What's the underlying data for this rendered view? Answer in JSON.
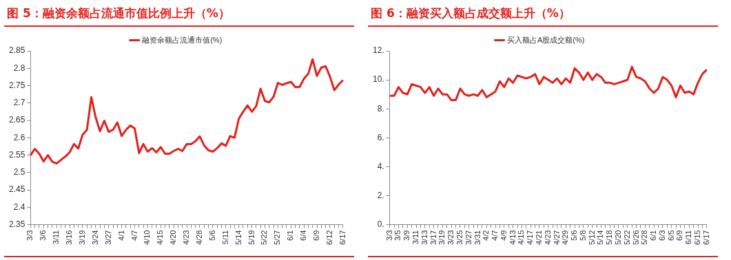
{
  "chart_data": [
    {
      "type": "line",
      "title": "图 5：融资余额占流通市值比例上升（%）",
      "legend": "top",
      "grid": false,
      "marker": "none",
      "line_style": "solid",
      "categories": [
        "3/3",
        null,
        null,
        "3/6",
        null,
        null,
        "3/11",
        null,
        null,
        "3/16",
        null,
        null,
        "3/19",
        null,
        null,
        "3/24",
        null,
        null,
        "3/27",
        null,
        null,
        "4/1",
        null,
        null,
        "4/7",
        null,
        null,
        "4/10",
        null,
        null,
        "4/15",
        null,
        null,
        "4/20",
        null,
        null,
        "4/23",
        null,
        null,
        "4/28",
        null,
        null,
        "5/6",
        null,
        null,
        "5/11",
        null,
        null,
        "5/14",
        null,
        null,
        "5/19",
        null,
        null,
        "5/22",
        null,
        null,
        "5/27",
        null,
        null,
        "6/1",
        null,
        null,
        "6/4",
        null,
        null,
        "6/9",
        null,
        null,
        "6/12",
        null,
        null,
        "6/17"
      ],
      "series": [
        {
          "name": "融资余额占流通市值(%)",
          "color": "#e3211c",
          "values": [
            2.55,
            2.568,
            2.554,
            2.532,
            2.55,
            2.531,
            2.526,
            2.536,
            2.546,
            2.558,
            2.582,
            2.569,
            2.609,
            2.623,
            2.717,
            2.659,
            2.619,
            2.649,
            2.617,
            2.623,
            2.644,
            2.605,
            2.623,
            2.635,
            2.627,
            2.556,
            2.582,
            2.56,
            2.57,
            2.558,
            2.573,
            2.554,
            2.554,
            2.562,
            2.568,
            2.562,
            2.582,
            2.582,
            2.59,
            2.604,
            2.578,
            2.564,
            2.56,
            2.57,
            2.584,
            2.577,
            2.605,
            2.6,
            2.655,
            2.675,
            2.693,
            2.675,
            2.691,
            2.741,
            2.706,
            2.702,
            2.718,
            2.758,
            2.752,
            2.757,
            2.761,
            2.746,
            2.746,
            2.77,
            2.784,
            2.826,
            2.778,
            2.802,
            2.806,
            2.776,
            2.737,
            2.753,
            2.766
          ]
        }
      ],
      "ylim": [
        2.35,
        2.85
      ],
      "yticks": [
        2.35,
        2.4,
        2.45,
        2.5,
        2.55,
        2.6,
        2.65,
        2.7,
        2.75,
        2.8,
        2.85
      ]
    },
    {
      "type": "line",
      "title": "图 6：融资买入额占成交额上升（%）",
      "legend": "top",
      "grid": false,
      "marker": "none",
      "line_style": "solid",
      "categories": [
        "3/3",
        null,
        "3/5",
        null,
        "3/9",
        null,
        "3/11",
        null,
        "3/13",
        null,
        "3/17",
        null,
        "3/19",
        null,
        "3/23",
        null,
        "3/25",
        null,
        "3/27",
        null,
        "3/31",
        null,
        "4/2",
        null,
        "4/7",
        null,
        "4/9",
        null,
        "4/13",
        null,
        "4/15",
        null,
        "4/17",
        null,
        "4/21",
        null,
        "4/23",
        null,
        "4/27",
        null,
        "4/29",
        null,
        "5/6",
        null,
        "5/8",
        null,
        "5/12",
        null,
        "5/14",
        null,
        "5/18",
        null,
        "5/20",
        null,
        "5/22",
        null,
        "5/26",
        null,
        "5/28",
        null,
        "6/1",
        null,
        "6/3",
        null,
        "6/5",
        null,
        "6/9",
        null,
        "6/11",
        null,
        "6/15",
        null,
        "6/17"
      ],
      "series": [
        {
          "name": "买入额占A股成交额(%)",
          "color": "#e3211c",
          "values": [
            8.9,
            8.9,
            9.5,
            9.1,
            9.0,
            9.7,
            9.6,
            9.5,
            9.1,
            9.5,
            8.9,
            9.4,
            9.0,
            9.0,
            8.6,
            8.6,
            9.4,
            9.0,
            8.9,
            9.0,
            8.9,
            9.3,
            8.8,
            9.0,
            9.2,
            9.9,
            9.5,
            10.1,
            9.8,
            10.3,
            10.2,
            10.1,
            10.2,
            10.4,
            9.7,
            10.2,
            10.0,
            9.8,
            10.1,
            9.7,
            10.1,
            9.8,
            10.8,
            10.5,
            10.0,
            10.5,
            10.0,
            10.4,
            10.2,
            9.8,
            9.8,
            9.7,
            9.8,
            9.9,
            10.0,
            10.9,
            10.2,
            10.1,
            9.9,
            9.4,
            9.1,
            9.4,
            10.2,
            10.0,
            9.6,
            8.8,
            9.6,
            9.1,
            9.2,
            9.0,
            9.8,
            10.4,
            10.7
          ]
        }
      ],
      "ylim": [
        0,
        12
      ],
      "yticks": [
        {
          "value": 0,
          "label": "0."
        },
        {
          "value": 2,
          "label": "2."
        },
        {
          "value": 4,
          "label": "4."
        },
        {
          "value": 6,
          "label": "6."
        },
        {
          "value": 8,
          "label": "8."
        },
        {
          "value": 10,
          "label": "10."
        },
        {
          "value": 12,
          "label": "12."
        }
      ]
    }
  ]
}
